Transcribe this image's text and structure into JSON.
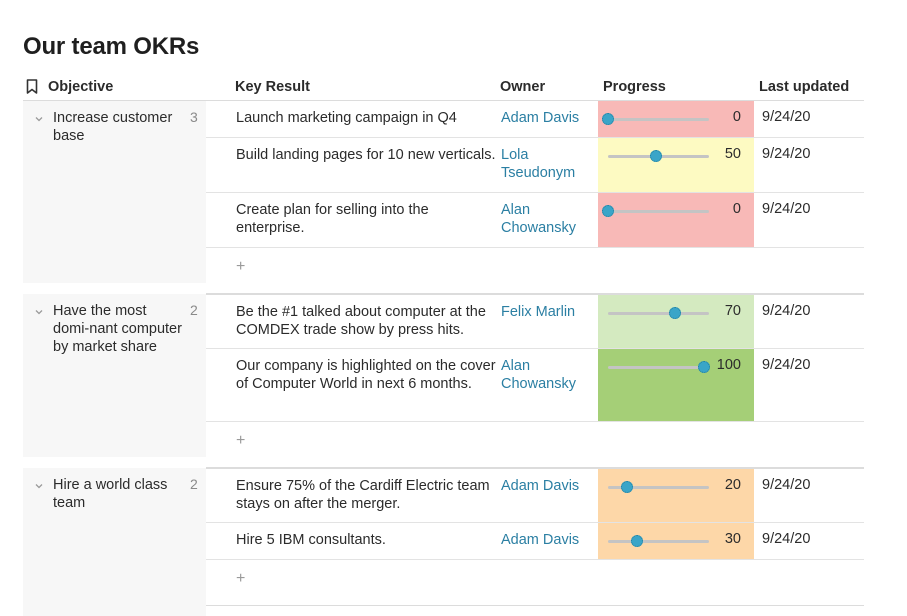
{
  "page": {
    "title": "Our team OKRs"
  },
  "columns": {
    "objective": "Objective",
    "key_result": "Key Result",
    "owner": "Owner",
    "progress": "Progress",
    "last_updated": "Last updated"
  },
  "add_label": "+",
  "groups": [
    {
      "objective": "Increase customer base",
      "count": "3",
      "key_results": [
        {
          "text": "Launch marketing campaign in Q4",
          "owner": "Adam Davis",
          "progress": 0,
          "progress_label": "0",
          "updated": "9/24/20",
          "color": "#f8b9b7"
        },
        {
          "text": "Build landing pages for 10 new verticals.",
          "owner": "Lola Tseudonym",
          "progress": 50,
          "progress_label": "50",
          "updated": "9/24/20",
          "color": "#fdfac2"
        },
        {
          "text": "Create plan for selling into the enterprise.",
          "owner": "Alan Chowansky",
          "progress": 0,
          "progress_label": "0",
          "updated": "9/24/20",
          "color": "#f8b9b7"
        }
      ]
    },
    {
      "objective": "Have the most domi-nant computer by market share",
      "count": "2",
      "key_results": [
        {
          "text": "Be the #1 talked about computer at the COMDEX trade show by press hits.",
          "owner": "Felix Marlin",
          "progress": 70,
          "progress_label": "70",
          "updated": "9/24/20",
          "color": "#d4eac0"
        },
        {
          "text": "Our company is highlighted on the cover of Computer World in next 6 months.",
          "owner": "Alan Chowansky",
          "progress": 100,
          "progress_label": "100",
          "updated": "9/24/20",
          "color": "#a5cf77"
        }
      ]
    },
    {
      "objective": "Hire a world class team",
      "count": "2",
      "key_results": [
        {
          "text": "Ensure 75% of the Cardiff Electric team stays on after the merger.",
          "owner": "Adam Davis",
          "progress": 20,
          "progress_label": "20",
          "updated": "9/24/20",
          "color": "#fdd7a8"
        },
        {
          "text": "Hire 5 IBM consultants.",
          "owner": "Adam Davis",
          "progress": 30,
          "progress_label": "30",
          "updated": "9/24/20",
          "color": "#fdd7a8"
        }
      ]
    }
  ]
}
